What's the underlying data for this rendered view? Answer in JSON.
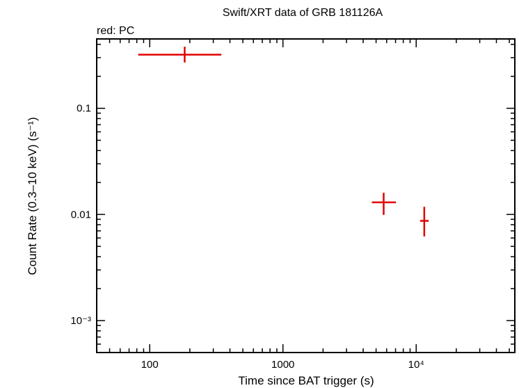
{
  "chart_data": {
    "type": "scatter",
    "title": "Swift/XRT data of GRB 181126A",
    "subtitle": "red: PC",
    "xlabel": "Time since BAT trigger (s)",
    "ylabel": "Count Rate (0.3–10 keV) (s⁻¹)",
    "xscale": "log",
    "yscale": "log",
    "xlim": [
      40,
      55000
    ],
    "ylim": [
      0.0005,
      0.45
    ],
    "x_ticks": [
      {
        "value": 100,
        "label": "100"
      },
      {
        "value": 1000,
        "label": "1000"
      },
      {
        "value": 10000,
        "label": "10⁴"
      }
    ],
    "y_ticks": [
      {
        "value": 0.1,
        "label": "0.1"
      },
      {
        "value": 0.01,
        "label": "0.01"
      },
      {
        "value": 0.001,
        "label": "10⁻³"
      }
    ],
    "grid": false,
    "series": [
      {
        "name": "PC",
        "color": "#e00000",
        "points": [
          {
            "x": 183,
            "y": 0.32,
            "x_lo": 82,
            "x_hi": 345,
            "y_lo": 0.27,
            "y_hi": 0.38
          },
          {
            "x": 5700,
            "y": 0.013,
            "x_lo": 4650,
            "x_hi": 7050,
            "y_lo": 0.0099,
            "y_hi": 0.016
          },
          {
            "x": 11500,
            "y": 0.0087,
            "x_lo": 10700,
            "x_hi": 12400,
            "y_lo": 0.0062,
            "y_hi": 0.0118
          }
        ]
      }
    ]
  }
}
